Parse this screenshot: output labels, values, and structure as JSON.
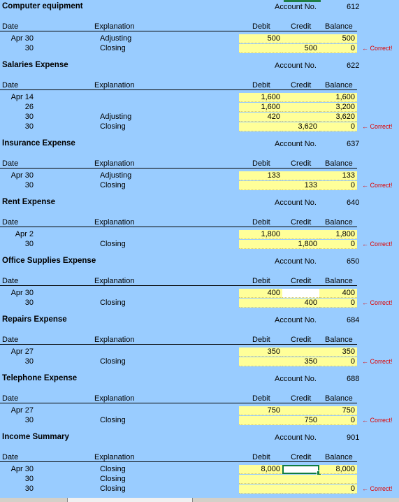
{
  "correct_text": "← Correct!",
  "header_labels": {
    "date": "Date",
    "explanation": "Explanation",
    "debit": "Debit",
    "credit": "Credit",
    "balance": "Balance",
    "account_no": "Account No."
  },
  "ledgers": [
    {
      "title": "Computer equipment",
      "account_no": "612",
      "rows": [
        {
          "date": "Apr 30",
          "explanation": "Adjusting",
          "debit": "500",
          "credit": "",
          "balance": "500",
          "correct": false
        },
        {
          "date": "30",
          "explanation": "Closing",
          "debit": "",
          "credit": "500",
          "balance": "0",
          "correct": true
        }
      ]
    },
    {
      "title": "Salaries Expense",
      "account_no": "622",
      "rows": [
        {
          "date": "Apr 14",
          "explanation": "",
          "debit": "1,600",
          "credit": "",
          "balance": "1,600",
          "correct": false
        },
        {
          "date": "26",
          "explanation": "",
          "debit": "1,600",
          "credit": "",
          "balance": "3,200",
          "correct": false
        },
        {
          "date": "30",
          "explanation": "Adjusting",
          "debit": "420",
          "credit": "",
          "balance": "3,620",
          "correct": false
        },
        {
          "date": "30",
          "explanation": "Closing",
          "debit": "",
          "credit": "3,620",
          "balance": "0",
          "correct": true
        }
      ]
    },
    {
      "title": "Insurance Expense",
      "account_no": "637",
      "rows": [
        {
          "date": "Apr 30",
          "explanation": "Adjusting",
          "debit": "133",
          "credit": "",
          "balance": "133",
          "correct": false
        },
        {
          "date": "30",
          "explanation": "Closing",
          "debit": "",
          "credit": "133",
          "balance": "0",
          "correct": true
        }
      ]
    },
    {
      "title": "Rent Expense",
      "account_no": "640",
      "rows": [
        {
          "date": "Apr 2",
          "explanation": "",
          "debit": "1,800",
          "credit": "",
          "balance": "1,800",
          "correct": false
        },
        {
          "date": "30",
          "explanation": "Closing",
          "debit": "",
          "credit": "1,800",
          "balance": "0",
          "correct": true
        }
      ]
    },
    {
      "title": "Office Supplies Expense",
      "account_no": "650",
      "rows": [
        {
          "date": "Apr 30",
          "explanation": "",
          "debit": "400",
          "credit": "",
          "balance": "400",
          "correct": false,
          "credit_white": true
        },
        {
          "date": "30",
          "explanation": "Closing",
          "debit": "",
          "credit": "400",
          "balance": "0",
          "correct": true
        }
      ]
    },
    {
      "title": "Repairs Expense",
      "account_no": "684",
      "rows": [
        {
          "date": "Apr 27",
          "explanation": "",
          "debit": "350",
          "credit": "",
          "balance": "350",
          "correct": false
        },
        {
          "date": "30",
          "explanation": "Closing",
          "debit": "",
          "credit": "350",
          "balance": "0",
          "correct": true
        }
      ]
    },
    {
      "title": "Telephone Expense",
      "account_no": "688",
      "rows": [
        {
          "date": "Apr 27",
          "explanation": "",
          "debit": "750",
          "credit": "",
          "balance": "750",
          "correct": false
        },
        {
          "date": "30",
          "explanation": "Closing",
          "debit": "",
          "credit": "750",
          "balance": "0",
          "correct": true
        }
      ]
    },
    {
      "title": "Income Summary",
      "account_no": "901",
      "rows": [
        {
          "date": "Apr 30",
          "explanation": "Closing",
          "debit": "8,000",
          "credit": "",
          "balance": "8,000",
          "correct": false,
          "credit_selected": true
        },
        {
          "date": "30",
          "explanation": "Closing",
          "debit": "",
          "credit": "",
          "balance": "",
          "correct": false
        },
        {
          "date": "30",
          "explanation": "Closing",
          "debit": "",
          "credit": "",
          "balance": "0",
          "correct": true
        }
      ]
    }
  ]
}
